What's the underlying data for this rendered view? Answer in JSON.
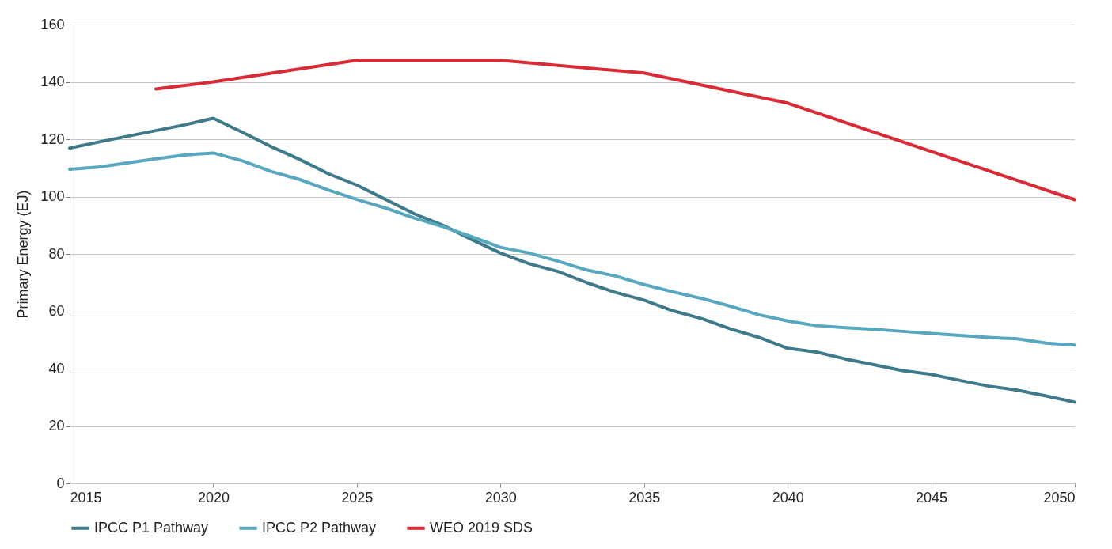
{
  "chart_data": {
    "type": "line",
    "ylabel": "Primary Energy (EJ)",
    "x": [
      2015,
      2016,
      2017,
      2018,
      2019,
      2020,
      2021,
      2022,
      2023,
      2024,
      2025,
      2026,
      2027,
      2028,
      2029,
      2030,
      2031,
      2032,
      2033,
      2034,
      2035,
      2036,
      2037,
      2038,
      2039,
      2040,
      2041,
      2042,
      2043,
      2044,
      2045,
      2046,
      2047,
      2048,
      2049,
      2050
    ],
    "series": [
      {
        "name": "IPCC P1 Pathway",
        "color": "#3f7a8c",
        "values": [
          116.9,
          119,
          121,
          123,
          125,
          127.3,
          122.5,
          117.5,
          113,
          108,
          104,
          99,
          94,
          90,
          85,
          80.3,
          76.6,
          73.9,
          70,
          66.6,
          63.9,
          60.2,
          57.5,
          53.9,
          50.9,
          47.1,
          45.8,
          43.4,
          41.4,
          39.3,
          38,
          35.9,
          33.9,
          32.5,
          30.5,
          28.3
        ]
      },
      {
        "name": "IPCC P2 Pathway",
        "color": "#56a7bf",
        "values": [
          109.5,
          110.3,
          111.7,
          113.2,
          114.5,
          115.2,
          112.5,
          108.8,
          106,
          102.3,
          99,
          96,
          92.5,
          89.5,
          86,
          82.3,
          80.3,
          77.5,
          74.4,
          72.3,
          69.3,
          66.8,
          64.5,
          61.8,
          58.8,
          56.6,
          55,
          54.3,
          53.7,
          53,
          52.3,
          51.6,
          50.9,
          50.4,
          48.9,
          48.2
        ]
      },
      {
        "name": "WEO 2019 SDS",
        "color": "#d92b35",
        "x": [
          2018,
          2020,
          2025,
          2030,
          2035,
          2040,
          2050
        ],
        "values": [
          137.5,
          140,
          147.5,
          147.5,
          143.1,
          132.6,
          98.9
        ]
      }
    ],
    "xlim": [
      2015,
      2050
    ],
    "xticks": [
      2015,
      2020,
      2025,
      2030,
      2035,
      2040,
      2045,
      2050
    ],
    "ylim": [
      0,
      160
    ],
    "yticks": [
      0,
      20,
      40,
      60,
      80,
      100,
      120,
      140,
      160
    ],
    "grid": "y",
    "legend": "bottom left",
    "line_style": "solid",
    "marker": "none"
  }
}
